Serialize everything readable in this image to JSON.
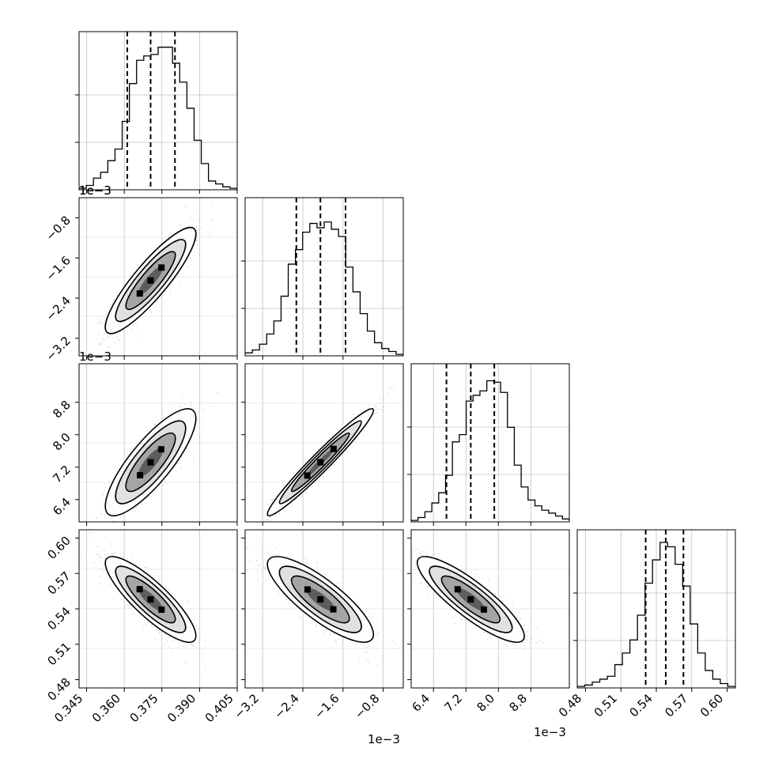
{
  "chart_data": {
    "type": "corner",
    "title": "",
    "params": [
      {
        "range": [
          0.342,
          0.405
        ],
        "ticks": [
          0.345,
          0.36,
          0.375,
          0.39,
          0.405
        ],
        "tick_labels": [
          "0.345",
          "0.360",
          "0.375",
          "0.390",
          "0.405"
        ],
        "offset_label": "",
        "median": 0.3705,
        "q16": 0.3612,
        "q84": 0.3802,
        "sd": 0.0082
      },
      {
        "range": [
          -3.55,
          -0.4
        ],
        "ticks": [
          -3.2,
          -2.4,
          -1.6,
          -0.8
        ],
        "tick_labels": [
          "−3.2",
          "−2.4",
          "−1.6",
          "−0.8"
        ],
        "offset_label": "1e−3",
        "median": -2.05,
        "q16": -2.53,
        "q84": -1.55,
        "sd": 0.48
      },
      {
        "range": [
          5.85,
          9.75
        ],
        "ticks": [
          6.4,
          7.2,
          8.0,
          8.8
        ],
        "tick_labels": [
          "6.4",
          "7.2",
          "8.0",
          "8.8"
        ],
        "offset_label": "1e−3",
        "median": 7.32,
        "q16": 6.72,
        "q84": 7.9,
        "sd": 0.6
      },
      {
        "range": [
          0.473,
          0.607
        ],
        "ticks": [
          0.48,
          0.51,
          0.54,
          0.57,
          0.6
        ],
        "tick_labels": [
          "0.48",
          "0.51",
          "0.54",
          "0.57",
          "0.60"
        ],
        "offset_label": "",
        "median": 0.548,
        "q16": 0.531,
        "q84": 0.563,
        "sd": 0.0165
      }
    ],
    "correlations": {
      "1-0": 0.88,
      "2-0": 0.82,
      "2-1": 0.97,
      "3-0": -0.85,
      "3-1": -0.82,
      "3-2": -0.86
    },
    "histogram_profiles": [
      [
        0.01,
        0.03,
        0.08,
        0.12,
        0.2,
        0.28,
        0.47,
        0.73,
        0.89,
        0.92,
        0.93,
        0.98,
        0.98,
        0.87,
        0.74,
        0.56,
        0.34,
        0.18,
        0.06,
        0.04,
        0.02,
        0.01
      ],
      [
        0.02,
        0.04,
        0.08,
        0.15,
        0.24,
        0.41,
        0.63,
        0.73,
        0.85,
        0.91,
        0.88,
        0.92,
        0.87,
        0.82,
        0.61,
        0.44,
        0.29,
        0.17,
        0.09,
        0.05,
        0.03,
        0.01
      ],
      [
        0.01,
        0.03,
        0.07,
        0.13,
        0.2,
        0.32,
        0.55,
        0.6,
        0.83,
        0.87,
        0.9,
        0.97,
        0.96,
        0.89,
        0.65,
        0.39,
        0.24,
        0.15,
        0.11,
        0.08,
        0.06,
        0.04,
        0.02
      ],
      [
        0.01,
        0.02,
        0.04,
        0.06,
        0.08,
        0.16,
        0.24,
        0.33,
        0.5,
        0.72,
        0.88,
        1.0,
        0.97,
        0.85,
        0.7,
        0.44,
        0.24,
        0.12,
        0.06,
        0.03,
        0.01
      ]
    ],
    "grid": true,
    "quantile_lines": "dashed",
    "xlabel": "",
    "ylabel": ""
  }
}
